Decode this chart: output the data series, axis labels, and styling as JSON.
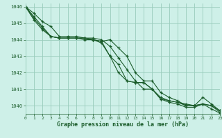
{
  "background_color": "#cef0e8",
  "plot_bg_color": "#cef0e8",
  "grid_color": "#99ccbb",
  "line_color": "#1a5c2a",
  "xlabel": "Graphe pression niveau de la mer (hPa)",
  "xlim": [
    0,
    23
  ],
  "ylim": [
    1039.5,
    1046.2
  ],
  "yticks": [
    1040,
    1041,
    1042,
    1043,
    1044,
    1045,
    1046
  ],
  "xticks": [
    0,
    1,
    2,
    3,
    4,
    5,
    6,
    7,
    8,
    9,
    10,
    11,
    12,
    13,
    14,
    15,
    16,
    17,
    18,
    19,
    20,
    21,
    22,
    23
  ],
  "series": [
    [
      1046.0,
      1045.6,
      1045.1,
      1044.8,
      1044.2,
      1044.2,
      1044.2,
      1044.1,
      1044.1,
      1044.0,
      1043.6,
      1042.9,
      1042.2,
      1041.5,
      1041.0,
      1041.0,
      1040.4,
      1040.3,
      1040.2,
      1040.1,
      1040.0,
      1040.1,
      1040.0,
      1039.7
    ],
    [
      1046.0,
      1045.4,
      1044.8,
      1044.2,
      1044.1,
      1044.1,
      1044.1,
      1044.1,
      1044.0,
      1043.9,
      1044.0,
      1043.5,
      1043.0,
      1042.0,
      1041.5,
      1041.5,
      1040.8,
      1040.5,
      1040.3,
      1040.0,
      1040.0,
      1040.5,
      1040.1,
      1039.7
    ],
    [
      1046.0,
      1045.3,
      1044.7,
      1044.2,
      1044.1,
      1044.1,
      1044.1,
      1044.1,
      1044.0,
      1043.9,
      1043.0,
      1042.5,
      1041.5,
      1041.4,
      1041.4,
      1041.0,
      1040.5,
      1040.3,
      1040.2,
      1040.0,
      1040.0,
      1040.1,
      1040.0,
      1039.6
    ],
    [
      1046.0,
      1045.2,
      1044.6,
      1044.2,
      1044.1,
      1044.1,
      1044.1,
      1044.0,
      1044.0,
      1043.8,
      1043.0,
      1042.0,
      1041.5,
      1041.4,
      1041.4,
      1041.0,
      1040.4,
      1040.2,
      1040.1,
      1039.9,
      1039.9,
      1040.1,
      1039.8,
      1039.55
    ]
  ]
}
